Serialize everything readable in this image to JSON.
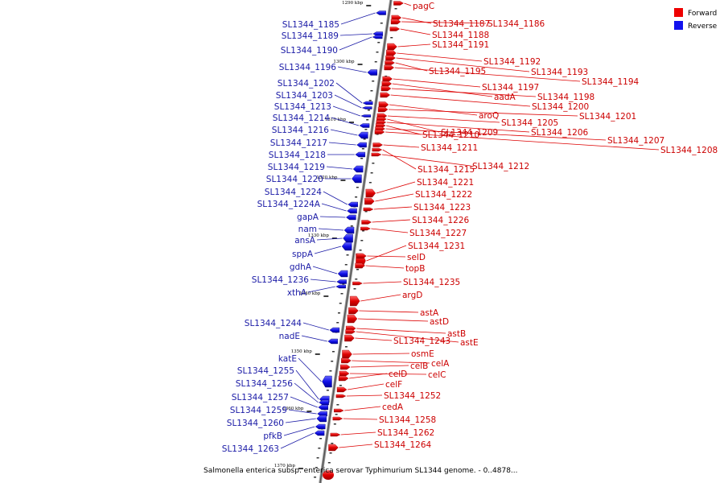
{
  "legend": {
    "forward_label": "Forward",
    "reverse_label": "Reverse",
    "forward_color": "#ee0000",
    "reverse_color": "#1111ee"
  },
  "caption": "Salmonella enterica subsp. enterica serovar Typhimurium SL1344 genome. - 0..4878...",
  "tick_labels": [
    "1290 kbp",
    "1300 kbp",
    "1310 kbp",
    "1320 kbp",
    "1330 kbp",
    "1340 kbp",
    "1350 kbp",
    "1360 kbp",
    "1370 kbp"
  ],
  "forward_genes": [
    "pagC",
    "SL1344_1187",
    "SL1344_1186",
    "SL1344_1188",
    "SL1344_1191",
    "SL1344_1192",
    "SL1344_1193",
    "SL1344_1195",
    "SL1344_1194",
    "SL1344_1197",
    "aadA",
    "SL1344_1198",
    "SL1344_1200",
    "aroQ",
    "SL1344_1201",
    "SL1344_1205",
    "SL1344_1209",
    "SL1344_1206",
    "SL1344_1210",
    "SL1344_1207",
    "SL1344_1208",
    "SL1344_1211",
    "SL1344_1215",
    "SL1344_1212",
    "SL1344_1221",
    "SL1344_1222",
    "SL1344_1223",
    "SL1344_1226",
    "SL1344_1227",
    "SL1344_1231",
    "selD",
    "topB",
    "SL1344_1235",
    "argD",
    "astA",
    "astD",
    "astB",
    "SL1344_1243",
    "astE",
    "osmE",
    "celA",
    "celB",
    "celC",
    "celD",
    "celF",
    "SL1344_1252",
    "cedA",
    "SL1344_1258",
    "SL1344_1262",
    "SL1344_1264"
  ],
  "reverse_genes": [
    "SL1344_1185",
    "SL1344_1189",
    "SL1344_1190",
    "SL1344_1196",
    "SL1344_1202",
    "SL1344_1203",
    "SL1344_1213",
    "SL1344_1214",
    "SL1344_1216",
    "SL1344_1217",
    "SL1344_1218",
    "SL1344_1219",
    "SL1344_1220",
    "SL1344_1224",
    "SL1344_1224A",
    "gapA",
    "nam",
    "ansA",
    "sppA",
    "gdhA",
    "SL1344_1236",
    "xthA",
    "SL1344_1244",
    "nadE",
    "katE",
    "SL1344_1255",
    "SL1344_1256",
    "SL1344_1257",
    "SL1344_1259",
    "SL1344_1260",
    "pfkB",
    "SL1344_1263"
  ]
}
